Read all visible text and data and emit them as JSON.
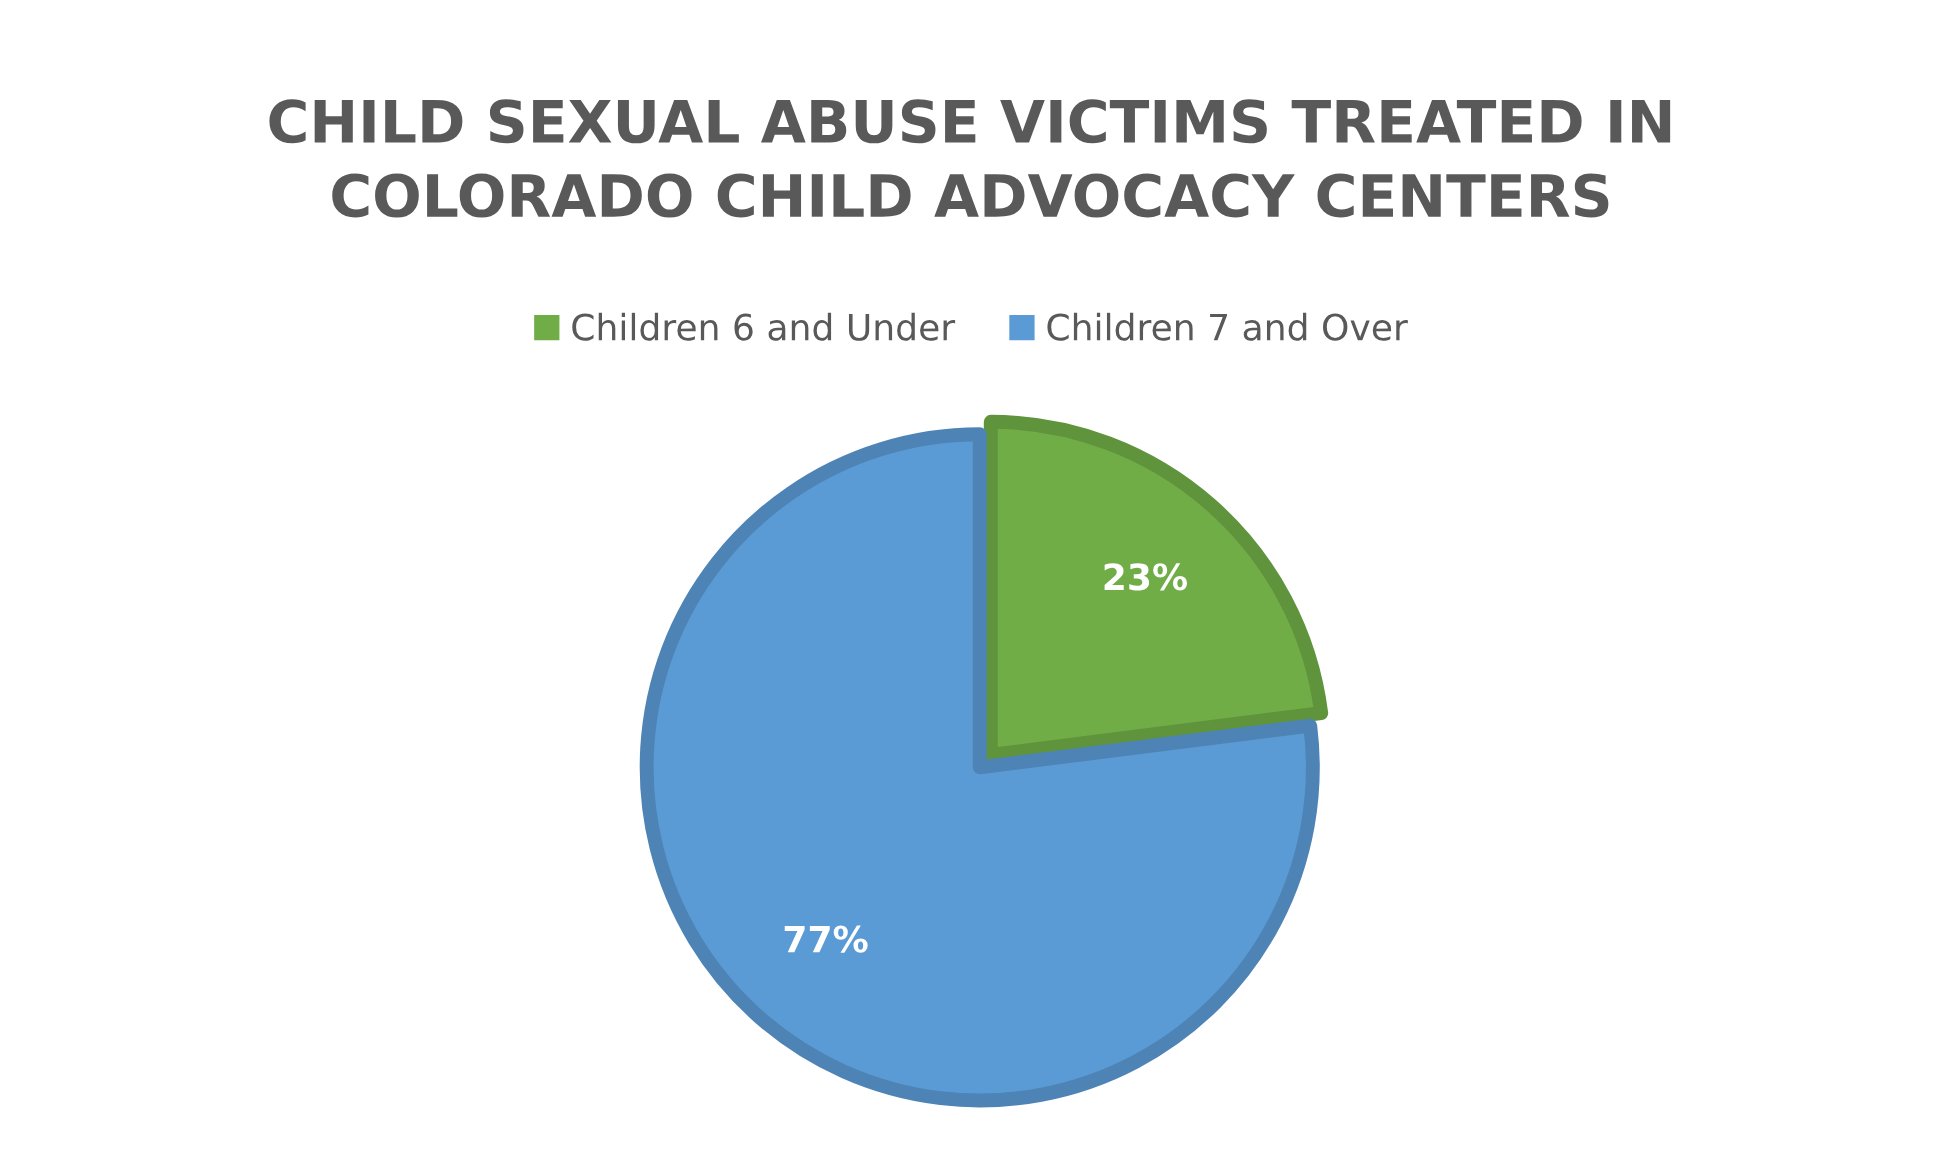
{
  "chart_data": {
    "type": "pie",
    "title": "CHILD SEXUAL ABUSE VICTIMS TREATED IN\nCOLORADO CHILD ADVOCACY CENTERS",
    "categories": [
      "Children 6 and Under",
      "Children 7 and Over"
    ],
    "values": [
      23,
      77
    ],
    "colors": [
      "#70ad47",
      "#5b9bd5"
    ],
    "value_labels": [
      "23%",
      "77%"
    ],
    "legend": "top"
  }
}
